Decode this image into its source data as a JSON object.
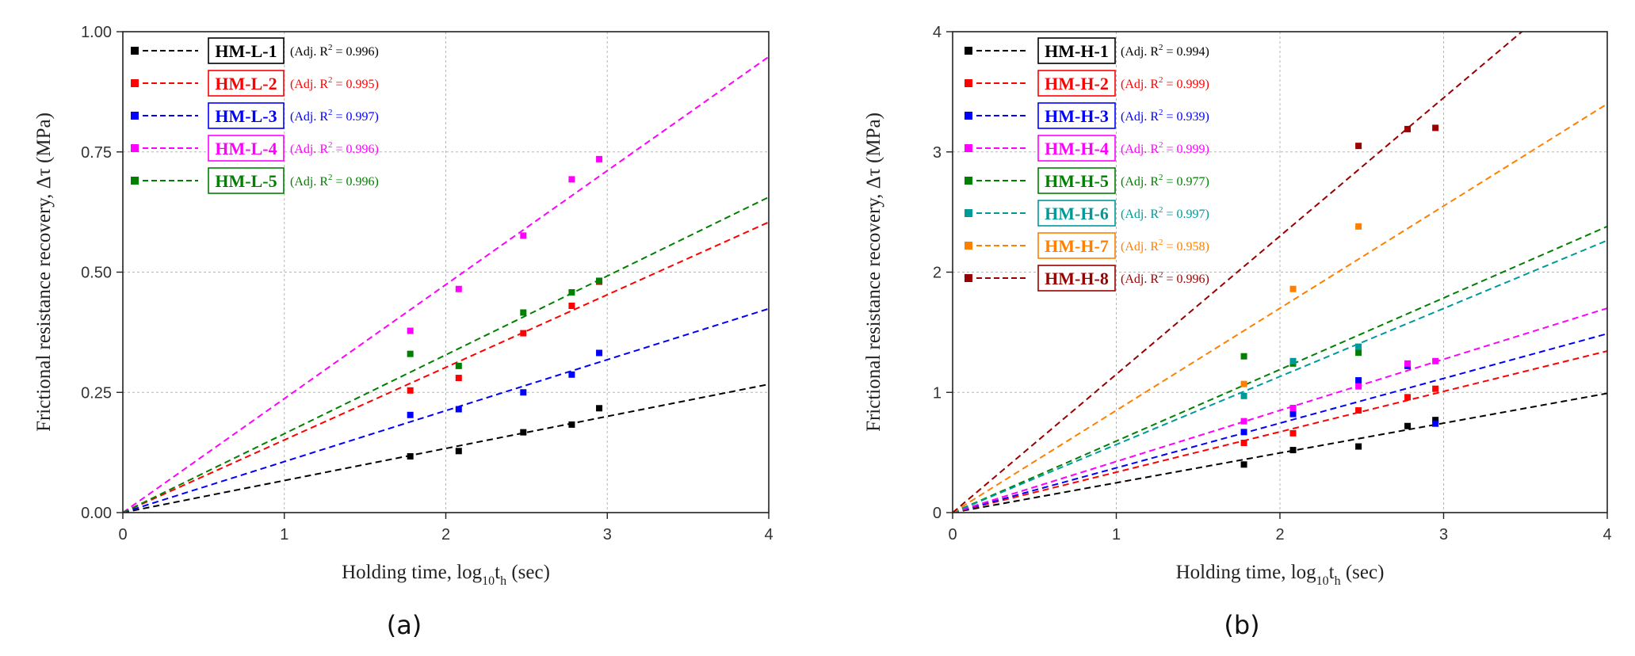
{
  "chart_data": [
    {
      "type": "scatter",
      "caption": "(a)",
      "xlabel": "Holding time, log",
      "xlabel_sub1": "10",
      "xlabel_mid": "t",
      "xlabel_sub2": "h",
      "xlabel_tail": " (sec)",
      "ylabel": "Frictional resistance recovery, Δτ (MPa)",
      "xlim": [
        0,
        4
      ],
      "ylim": [
        0,
        1.0
      ],
      "xticks": [
        0,
        1,
        2,
        3,
        4
      ],
      "yticks": [
        0,
        0.25,
        0.5,
        0.75,
        1.0
      ],
      "ytick_labels": [
        "0.00",
        "0.25",
        "0.50",
        "0.75",
        "1.00"
      ],
      "grid": true,
      "legend_position": "top-left",
      "series": [
        {
          "name": "HM-L-1",
          "color": "#000000",
          "r2_prefix": "(Adj. R",
          "r2_sup": "2",
          "r2_value": " = 0.996)",
          "slope": 0.0667,
          "x": [
            1.78,
            2.08,
            2.48,
            2.78,
            2.95
          ],
          "y": [
            0.117,
            0.128,
            0.167,
            0.183,
            0.217
          ]
        },
        {
          "name": "HM-L-2",
          "color": "#ff0000",
          "r2_prefix": "(Adj. R",
          "r2_sup": "2",
          "r2_value": " = 0.995)",
          "slope": 0.151,
          "x": [
            1.78,
            2.08,
            2.48,
            2.78,
            2.95
          ],
          "y": [
            0.254,
            0.28,
            0.373,
            0.43,
            0.48
          ]
        },
        {
          "name": "HM-L-3",
          "color": "#0000ff",
          "r2_prefix": "(Adj. R",
          "r2_sup": "2",
          "r2_value": " = 0.997)",
          "slope": 0.106,
          "x": [
            1.78,
            2.08,
            2.48,
            2.78,
            2.95
          ],
          "y": [
            0.203,
            0.215,
            0.25,
            0.287,
            0.332
          ]
        },
        {
          "name": "HM-L-4",
          "color": "#ff00ff",
          "r2_prefix": "(Adj. R",
          "r2_sup": "2",
          "r2_value": " = 0.996)",
          "slope": 0.237,
          "x": [
            1.78,
            2.08,
            2.48,
            2.78,
            2.95
          ],
          "y": [
            0.378,
            0.465,
            0.576,
            0.693,
            0.735
          ]
        },
        {
          "name": "HM-L-5",
          "color": "#008000",
          "r2_prefix": "(Adj. R",
          "r2_sup": "2",
          "r2_value": " = 0.996)",
          "slope": 0.164,
          "x": [
            1.78,
            2.08,
            2.48,
            2.78,
            2.95
          ],
          "y": [
            0.33,
            0.305,
            0.416,
            0.458,
            0.482
          ]
        }
      ]
    },
    {
      "type": "scatter",
      "caption": "(b)",
      "xlabel": "Holding time, log",
      "xlabel_sub1": "10",
      "xlabel_mid": "t",
      "xlabel_sub2": "h",
      "xlabel_tail": " (sec)",
      "ylabel": "Frictional resistance recovery, Δτ (MPa)",
      "xlim": [
        0,
        4
      ],
      "ylim": [
        0,
        4
      ],
      "xticks": [
        0,
        1,
        2,
        3,
        4
      ],
      "yticks": [
        0,
        1,
        2,
        3,
        4
      ],
      "ytick_labels": [
        "0",
        "1",
        "2",
        "3",
        "4"
      ],
      "grid": true,
      "legend_position": "top-left",
      "series": [
        {
          "name": "HM-H-1",
          "color": "#000000",
          "r2_prefix": "(Adj. R",
          "r2_sup": "2",
          "r2_value": " = 0.994)",
          "slope": 0.248,
          "x": [
            1.78,
            2.08,
            2.48,
            2.78,
            2.95
          ],
          "y": [
            0.4,
            0.52,
            0.55,
            0.72,
            0.77
          ]
        },
        {
          "name": "HM-H-2",
          "color": "#ff0000",
          "r2_prefix": "(Adj. R",
          "r2_sup": "2",
          "r2_value": " = 0.999)",
          "slope": 0.336,
          "x": [
            1.78,
            2.08,
            2.48,
            2.78,
            2.95
          ],
          "y": [
            0.58,
            0.66,
            0.85,
            0.96,
            1.03
          ]
        },
        {
          "name": "HM-H-3",
          "color": "#0000ff",
          "r2_prefix": "(Adj. R",
          "r2_sup": "2",
          "r2_value": " = 0.939)",
          "slope": 0.372,
          "x": [
            1.78,
            2.08,
            2.48,
            2.78,
            2.95
          ],
          "y": [
            0.67,
            0.82,
            1.1,
            1.22,
            0.74
          ]
        },
        {
          "name": "HM-H-4",
          "color": "#ff00ff",
          "r2_prefix": "(Adj. R",
          "r2_sup": "2",
          "r2_value": " = 0.999)",
          "slope": 0.425,
          "x": [
            1.78,
            2.08,
            2.48,
            2.78,
            2.95
          ],
          "y": [
            0.76,
            0.87,
            1.05,
            1.24,
            1.26
          ]
        },
        {
          "name": "HM-H-5",
          "color": "#008000",
          "r2_prefix": "(Adj. R",
          "r2_sup": "2",
          "r2_value": " = 0.977)",
          "slope": 0.595,
          "x": [
            1.78,
            2.08,
            2.48
          ],
          "y": [
            1.3,
            1.24,
            1.33
          ]
        },
        {
          "name": "HM-H-6",
          "color": "#009999",
          "r2_prefix": "(Adj. R",
          "r2_sup": "2",
          "r2_value": " = 0.997)",
          "slope": 0.566,
          "x": [
            1.78,
            2.08,
            2.48
          ],
          "y": [
            0.97,
            1.26,
            1.38
          ]
        },
        {
          "name": "HM-H-7",
          "color": "#ff8000",
          "r2_prefix": "(Adj. R",
          "r2_sup": "2",
          "r2_value": " = 0.958)",
          "slope": 0.85,
          "x": [
            1.78,
            2.08,
            2.48
          ],
          "y": [
            1.07,
            1.86,
            2.38
          ]
        },
        {
          "name": "HM-H-8",
          "color": "#990000",
          "r2_prefix": "(Adj. R",
          "r2_sup": "2",
          "r2_value": " = 0.996)",
          "slope": 1.15,
          "x": [
            2.48,
            2.78,
            2.95
          ],
          "y": [
            3.05,
            3.19,
            3.2
          ]
        }
      ]
    }
  ]
}
